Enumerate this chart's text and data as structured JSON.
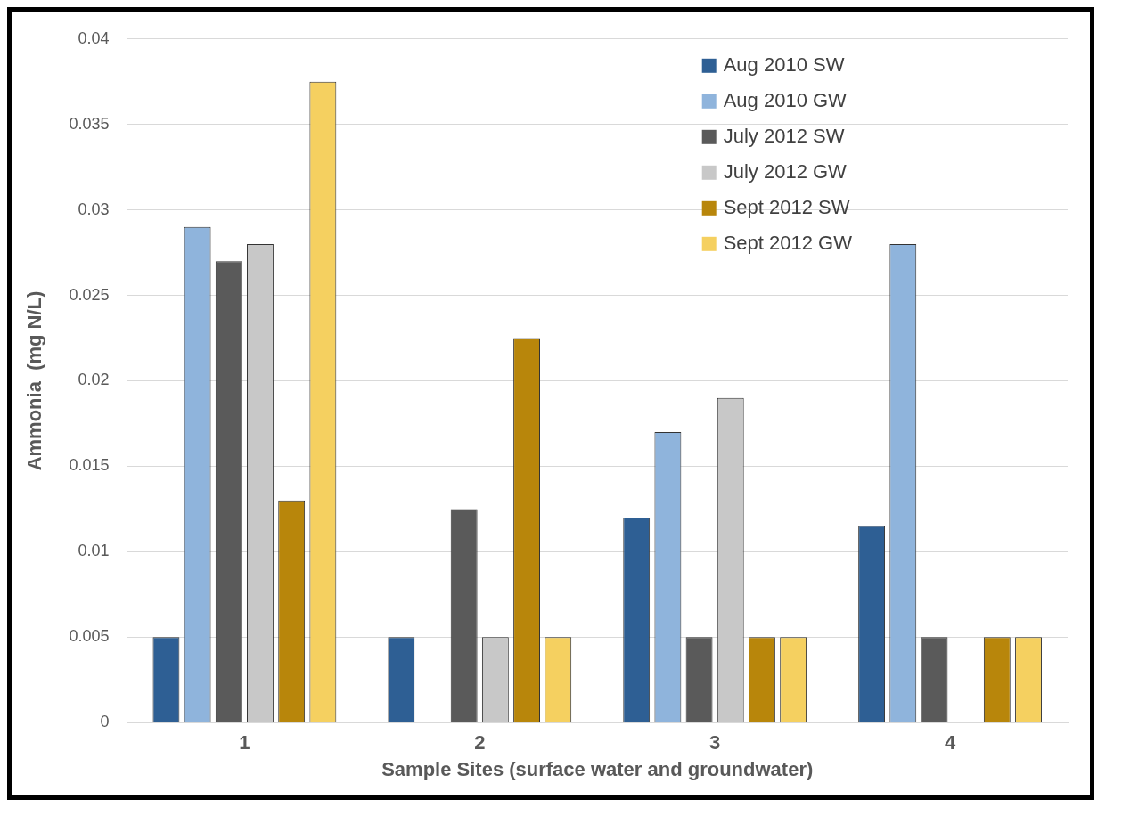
{
  "chart_data": {
    "type": "bar",
    "xlabel": "Sample Sites (surface water and groundwater)",
    "ylabel": "Ammonia  (mg N/L)",
    "categories": [
      "1",
      "2",
      "3",
      "4"
    ],
    "series": [
      {
        "name": "Aug 2010 SW",
        "color": "#2e5f94",
        "values": [
          0.005,
          0.005,
          0.012,
          0.0115
        ]
      },
      {
        "name": "Aug 2010 GW",
        "color": "#8fb4dc",
        "values": [
          0.029,
          null,
          0.017,
          0.028
        ]
      },
      {
        "name": "July 2012 SW",
        "color": "#5a5a5a",
        "values": [
          0.027,
          0.0125,
          0.005,
          0.005
        ]
      },
      {
        "name": "July 2012 GW",
        "color": "#c8c8c8",
        "values": [
          0.028,
          0.005,
          0.019,
          null
        ]
      },
      {
        "name": "Sept 2012 SW",
        "color": "#b8860b",
        "values": [
          0.013,
          0.0225,
          0.005,
          0.005
        ]
      },
      {
        "name": "Sept 2012 GW",
        "color": "#f5d060",
        "values": [
          0.0375,
          0.005,
          0.005,
          0.005
        ]
      }
    ],
    "ylim": [
      0,
      0.04
    ],
    "yticks": [
      0,
      0.005,
      0.01,
      0.015,
      0.02,
      0.025,
      0.03,
      0.035,
      0.04
    ],
    "grid": "y",
    "legend": "top right"
  }
}
